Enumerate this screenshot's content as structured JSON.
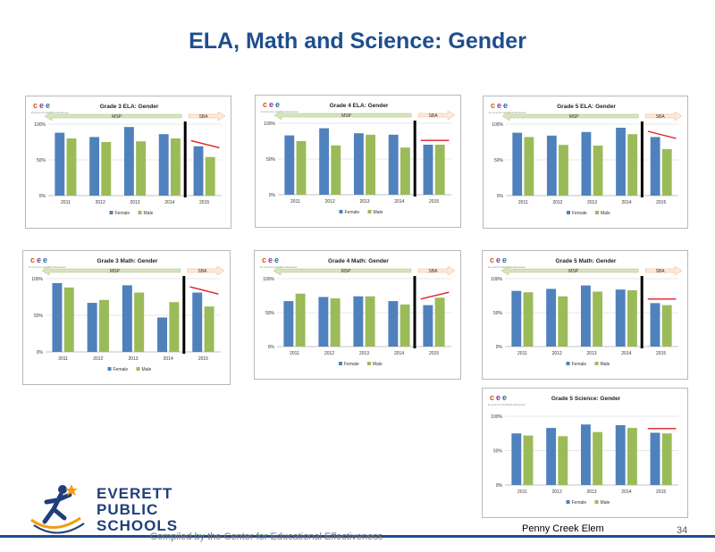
{
  "page": {
    "title": "ELA, Math and Science: Gender",
    "footer": "Compiled by the Center for Educational Effectiveness",
    "school": "Penny Creek Elem",
    "page_number": "34",
    "logo_lines": [
      "EVERETT",
      "PUBLIC",
      "SCHOOLS"
    ]
  },
  "colors": {
    "female": "#4f81bd",
    "male": "#9bbb59",
    "trend": "#e02020",
    "title": "#1f4e8c",
    "msp_arrow": "#d7e4bd",
    "sba_arrow": "#fde9d9"
  },
  "chart_common": {
    "cee_logo": "cee",
    "cee_tagline": "the center for educational effectiveness",
    "msp_label": "MSP",
    "sba_label": "SBA",
    "y_ticks": [
      "0%",
      "50%",
      "100%"
    ],
    "legend": [
      "Female",
      "Male"
    ]
  },
  "chart_data": [
    {
      "type": "bar",
      "title": "Grade 3 ELA: Gender",
      "categories": [
        "2011",
        "2012",
        "2013",
        "2014",
        "2015"
      ],
      "ylim": [
        0,
        100
      ],
      "divider": true,
      "series": [
        {
          "name": "Female",
          "values": [
            88,
            82,
            96,
            86,
            69
          ]
        },
        {
          "name": "Male",
          "values": [
            80,
            75,
            76,
            80,
            54
          ]
        }
      ],
      "trend": "down"
    },
    {
      "type": "bar",
      "title": "Grade 4 ELA: Gender",
      "categories": [
        "2011",
        "2012",
        "2013",
        "2014",
        "2015"
      ],
      "ylim": [
        0,
        100
      ],
      "divider": true,
      "series": [
        {
          "name": "Female",
          "values": [
            83,
            93,
            86,
            84,
            70
          ]
        },
        {
          "name": "Male",
          "values": [
            75,
            69,
            84,
            66,
            70
          ]
        }
      ],
      "trend": "flat"
    },
    {
      "type": "bar",
      "title": "Grade 5 ELA: Gender",
      "categories": [
        "2011",
        "2012",
        "2013",
        "2014",
        "2015"
      ],
      "ylim": [
        0,
        100
      ],
      "divider": true,
      "series": [
        {
          "name": "Female",
          "values": [
            88,
            84,
            89,
            95,
            82
          ]
        },
        {
          "name": "Male",
          "values": [
            82,
            71,
            70,
            86,
            65
          ]
        }
      ],
      "trend": "down"
    },
    {
      "type": "bar",
      "title": "Grade 3 Math: Gender",
      "categories": [
        "2011",
        "2012",
        "2013",
        "2014",
        "2015"
      ],
      "ylim": [
        0,
        100
      ],
      "divider": true,
      "series": [
        {
          "name": "Female",
          "values": [
            94,
            67,
            91,
            47,
            81
          ]
        },
        {
          "name": "Male",
          "values": [
            88,
            71,
            81,
            68,
            62
          ]
        }
      ],
      "trend": "down"
    },
    {
      "type": "bar",
      "title": "Grade 4 Math: Gender",
      "categories": [
        "2011",
        "2012",
        "2013",
        "2014",
        "2015"
      ],
      "ylim": [
        0,
        100
      ],
      "divider": true,
      "series": [
        {
          "name": "Female",
          "values": [
            67,
            73,
            74,
            67,
            61
          ]
        },
        {
          "name": "Male",
          "values": [
            78,
            71,
            74,
            62,
            72
          ]
        }
      ],
      "trend": "up"
    },
    {
      "type": "bar",
      "title": "Grade 5 Math: Gender",
      "categories": [
        "2011",
        "2012",
        "2013",
        "2014",
        "2015"
      ],
      "ylim": [
        0,
        100
      ],
      "divider": true,
      "series": [
        {
          "name": "Female",
          "values": [
            82,
            85,
            90,
            84,
            64
          ]
        },
        {
          "name": "Male",
          "values": [
            80,
            74,
            81,
            83,
            61
          ]
        }
      ],
      "trend": "flat"
    },
    {
      "type": "bar",
      "title": "Grade 5 Science: Gender",
      "categories": [
        "2011",
        "2012",
        "2013",
        "2014",
        "2015"
      ],
      "ylim": [
        0,
        100
      ],
      "divider": false,
      "series": [
        {
          "name": "Female",
          "values": [
            75,
            83,
            88,
            87,
            76
          ]
        },
        {
          "name": "Male",
          "values": [
            72,
            71,
            77,
            83,
            75
          ]
        }
      ],
      "trend": "flat"
    }
  ]
}
